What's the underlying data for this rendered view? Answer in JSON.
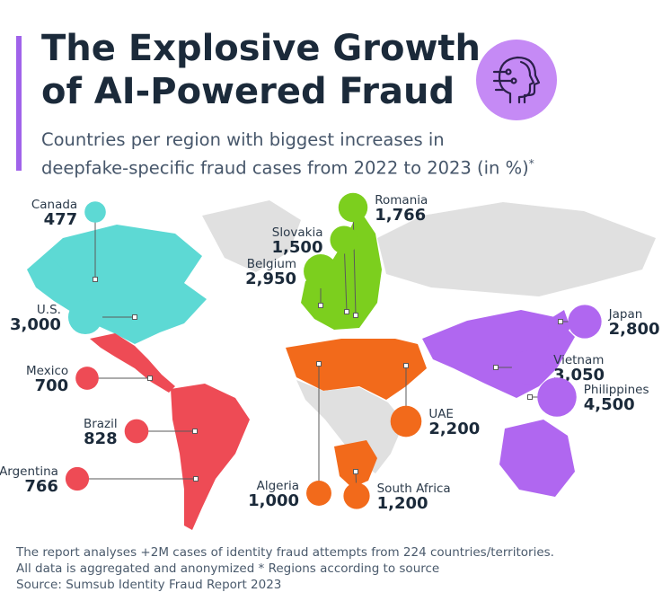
{
  "header": {
    "title_line1": "The Explosive Growth",
    "title_line2": "of AI-Powered Fraud",
    "subtitle_line1": "Countries per region with biggest increases in",
    "subtitle_line2": "deepfake-specific fraud cases from 2022 to 2023 (in %)",
    "subtitle_mark": "*"
  },
  "badge": {
    "icon": "ai-head-icon",
    "color": "#c58af5"
  },
  "colors": {
    "north_america": "#5dd9d4",
    "latin_america": "#ee4b55",
    "europe": "#7ccf1e",
    "africa_middle_east": "#f26a1b",
    "asia_pacific": "#b067f0",
    "other": "#e0e0e0"
  },
  "chart_data": {
    "type": "table",
    "title": "The Explosive Growth of AI-Powered Fraud",
    "unit": "%",
    "points": [
      {
        "country": "Canada",
        "value": 477,
        "region": "north_america"
      },
      {
        "country": "U.S.",
        "value": 3000,
        "region": "north_america"
      },
      {
        "country": "Mexico",
        "value": 700,
        "region": "latin_america"
      },
      {
        "country": "Brazil",
        "value": 828,
        "region": "latin_america"
      },
      {
        "country": "Argentina",
        "value": 766,
        "region": "latin_america"
      },
      {
        "country": "Romania",
        "value": 1766,
        "region": "europe"
      },
      {
        "country": "Slovakia",
        "value": 1500,
        "region": "europe"
      },
      {
        "country": "Belgium",
        "value": 2950,
        "region": "europe"
      },
      {
        "country": "Algeria",
        "value": 1000,
        "region": "africa_middle_east"
      },
      {
        "country": "UAE",
        "value": 2200,
        "region": "africa_middle_east"
      },
      {
        "country": "South Africa",
        "value": 1200,
        "region": "africa_middle_east"
      },
      {
        "country": "Japan",
        "value": 2800,
        "region": "asia_pacific"
      },
      {
        "country": "Vietnam",
        "value": 3050,
        "region": "asia_pacific"
      },
      {
        "country": "Philippines",
        "value": 4500,
        "region": "asia_pacific"
      }
    ]
  },
  "footer": {
    "line1": "The report analyses +2M cases of identity fraud attempts from 224 countries/territories.",
    "line2": "All data is aggregated and anonymized    * Regions according to source",
    "line3": "Source: Sumsub Identity Fraud Report 2023"
  }
}
